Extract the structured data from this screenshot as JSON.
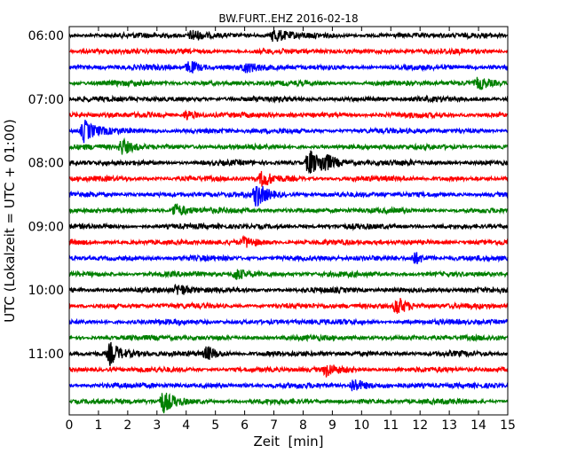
{
  "chart_data": {
    "type": "line",
    "title": "BW.FURT..EHZ 2016-02-18",
    "xlabel": "Zeit  [min]",
    "ylabel": "UTC (Lokalzeit = UTC + 01:00)",
    "xlim": [
      0,
      15
    ],
    "x_ticks": [
      "0",
      "1",
      "2",
      "3",
      "4",
      "5",
      "6",
      "7",
      "8",
      "9",
      "10",
      "11",
      "12",
      "13",
      "14",
      "15"
    ],
    "y_tick_labels": [
      "06:00",
      "07:00",
      "08:00",
      "09:00",
      "10:00",
      "11:00"
    ],
    "trace_interval_min": 15,
    "trace_colors": [
      "#000000",
      "#ff0000",
      "#0000ff",
      "#008000"
    ],
    "traces": [
      {
        "start": "06:00",
        "events": [
          {
            "t": 4.2,
            "amp": 1.2
          },
          {
            "t": 7.0,
            "amp": 1.5
          }
        ]
      },
      {
        "start": "06:15",
        "events": []
      },
      {
        "start": "06:30",
        "events": [
          {
            "t": 4.1,
            "amp": 1.4
          },
          {
            "t": 6.0,
            "amp": 1.0
          }
        ]
      },
      {
        "start": "06:45",
        "events": [
          {
            "t": 14.0,
            "amp": 1.2
          }
        ]
      },
      {
        "start": "07:00",
        "events": []
      },
      {
        "start": "07:15",
        "events": [
          {
            "t": 4.0,
            "amp": 1.0
          }
        ]
      },
      {
        "start": "07:30",
        "events": [
          {
            "t": 0.5,
            "amp": 2.2
          }
        ]
      },
      {
        "start": "07:45",
        "events": [
          {
            "t": 1.8,
            "amp": 1.6
          }
        ]
      },
      {
        "start": "08:00",
        "events": [
          {
            "t": 8.2,
            "amp": 2.8
          },
          {
            "t": 8.7,
            "amp": 1.6
          }
        ]
      },
      {
        "start": "08:15",
        "events": [
          {
            "t": 6.6,
            "amp": 1.6
          }
        ]
      },
      {
        "start": "08:30",
        "events": [
          {
            "t": 6.4,
            "amp": 2.4
          }
        ]
      },
      {
        "start": "08:45",
        "events": [
          {
            "t": 3.6,
            "amp": 1.5
          }
        ]
      },
      {
        "start": "09:00",
        "events": []
      },
      {
        "start": "09:15",
        "events": [
          {
            "t": 6.0,
            "amp": 1.0
          }
        ]
      },
      {
        "start": "09:30",
        "events": [
          {
            "t": 11.8,
            "amp": 1.3
          }
        ]
      },
      {
        "start": "09:45",
        "events": [
          {
            "t": 5.7,
            "amp": 1.2
          }
        ]
      },
      {
        "start": "10:00",
        "events": [
          {
            "t": 3.7,
            "amp": 1.2
          }
        ]
      },
      {
        "start": "10:15",
        "events": [
          {
            "t": 11.2,
            "amp": 2.0
          }
        ]
      },
      {
        "start": "10:30",
        "events": []
      },
      {
        "start": "10:45",
        "events": []
      },
      {
        "start": "11:00",
        "events": [
          {
            "t": 1.4,
            "amp": 2.2
          },
          {
            "t": 4.7,
            "amp": 1.4
          }
        ]
      },
      {
        "start": "11:15",
        "events": [
          {
            "t": 8.8,
            "amp": 1.2
          }
        ]
      },
      {
        "start": "11:30",
        "events": [
          {
            "t": 9.7,
            "amp": 1.6
          }
        ]
      },
      {
        "start": "11:45",
        "events": [
          {
            "t": 3.2,
            "amp": 2.2
          }
        ]
      }
    ]
  }
}
